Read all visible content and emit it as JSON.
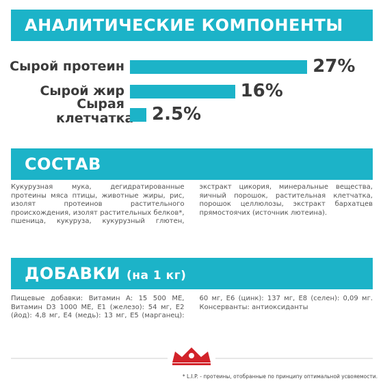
{
  "chart_data": {
    "type": "bar",
    "title": "АНАЛИТИЧЕСКИЕ КОМПОНЕНТЫ",
    "categories": [
      "Сырой протеин",
      "Сырой жир",
      "Сырая клетчатка"
    ],
    "values": [
      27,
      16,
      2.5
    ],
    "value_labels": [
      "27%",
      "16%",
      "2.5%"
    ],
    "color": "#1cb3c8"
  },
  "composition": {
    "title": "СОСТАВ",
    "text": "Кукурузная мука, дегидратированные протеины мяса птицы, животные жиры, рис, изолят протеинов растительного происхождения, изолят растительных белков*, пшеница, кукуруза, кукурузный глютен, экстракт цикория, минеральные вещества, яичный порошок, растительная клетчатка, порошок целлюлозы, экстракт бархатцев прямостоячих (источник лютеина)."
  },
  "additives": {
    "title": "ДОБАВКИ",
    "subtitle": "(на 1 кг)",
    "text": "Пищевые добавки: Витамин A: 15 500 МЕ, Витамин D3 1000 МЕ, E1 (железо): 54 мг, E2 (йод): 4,8 мг, E4 (медь): 13 мг, E5 (марганец): 60 мг, E6 (цинк): 137 мг, E8 (селен): 0,09 мг. Консерванты: антиоксиданты"
  },
  "footnote": "* L.I.P. - протеины, отобранные по принципу оптимальной усвояемости."
}
